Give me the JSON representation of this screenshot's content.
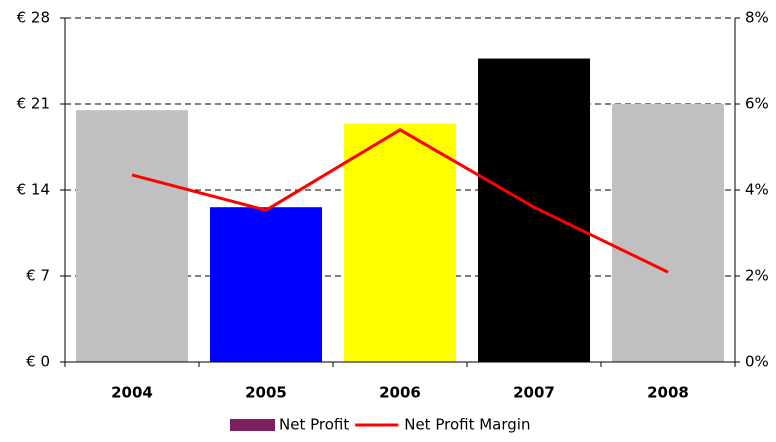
{
  "chart_data": {
    "type": "bar-line",
    "categories": [
      "2004",
      "2005",
      "2006",
      "2007",
      "2008"
    ],
    "series": [
      {
        "name": "Net Profit",
        "color": "#7b2160",
        "colors": [
          "#c0c0c0",
          "#0000ff",
          "#ffff00",
          "#000000",
          "#c0c0c0"
        ],
        "values": [
          20.5,
          12.6,
          19.4,
          24.7,
          21.0
        ]
      },
      {
        "name": "Net Profit Margin",
        "color": "#ff0000",
        "axis": "y2",
        "values": [
          4.35,
          3.53,
          5.4,
          3.6,
          2.09
        ]
      }
    ],
    "ylim": [
      0,
      28
    ],
    "yticks": [
      {
        "value": 0,
        "label": "€ 0"
      },
      {
        "value": 7,
        "label": "€ 7"
      },
      {
        "value": 14,
        "label": "€ 14"
      },
      {
        "value": 21,
        "label": "€ 21"
      },
      {
        "value": 28,
        "label": "€ 28"
      }
    ],
    "y2lim": [
      0,
      8
    ],
    "y2ticks": [
      {
        "value": 0,
        "label": "0%"
      },
      {
        "value": 2,
        "label": "2%"
      },
      {
        "value": 4,
        "label": "4%"
      },
      {
        "value": 6,
        "label": "6%"
      },
      {
        "value": 8,
        "label": "8%"
      }
    ],
    "grid": true
  }
}
